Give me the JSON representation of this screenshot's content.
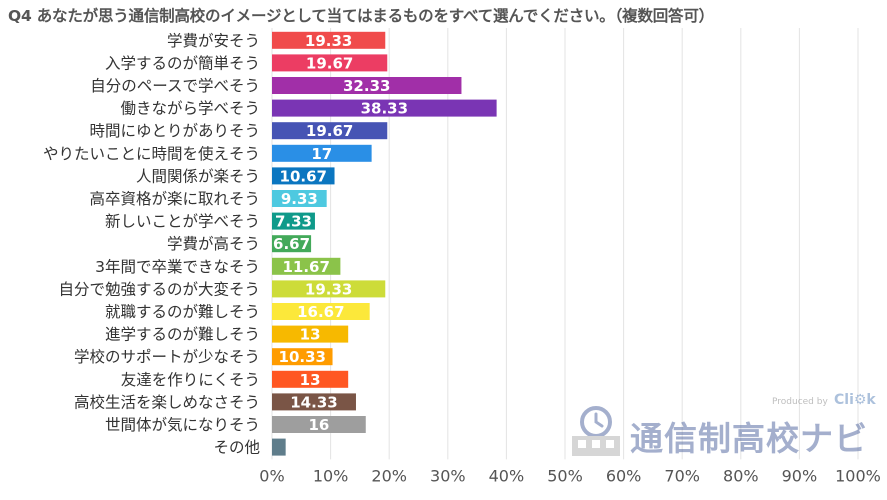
{
  "chart_data": {
    "type": "bar",
    "orientation": "horizontal",
    "title": "Q4 あなたが思う通信制高校のイメージとして当てはまるものをすべて選んでください。（複数回答可）",
    "categories": [
      "学費が安そう",
      "入学するのが簡単そう",
      "自分のペースで学べそう",
      "働きながら学べそう",
      "時間にゆとりがありそう",
      "やりたいことに時間を使えそう",
      "人間関係が楽そう",
      "高卒資格が楽に取れそう",
      "新しいことが学べそう",
      "学費が高そう",
      "3年間で卒業できなそう",
      "自分で勉強するのが大変そう",
      "就職するのが難しそう",
      "進学するのが難しそう",
      "学校のサポートが少なそう",
      "友達を作りにくそう",
      "高校生活を楽しめなさそう",
      "世間体が気になりそう",
      "その他"
    ],
    "values": [
      19.33,
      19.67,
      32.33,
      38.33,
      19.67,
      17,
      10.67,
      9.33,
      7.33,
      6.67,
      11.67,
      19.33,
      16.67,
      13,
      10.33,
      13,
      14.33,
      16,
      2.33
    ],
    "value_labels": [
      "19.33",
      "19.67",
      "32.33",
      "38.33",
      "19.67",
      "17",
      "10.67",
      "9.33",
      "7.33",
      "6.67",
      "11.67",
      "19.33",
      "16.67",
      "13",
      "10.33",
      "13",
      "14.33",
      "16",
      ""
    ],
    "colors": [
      "#f04b4b",
      "#ec3d63",
      "#a12fa8",
      "#7a35b4",
      "#4654b4",
      "#2a8fe6",
      "#0b76c0",
      "#4ec9e0",
      "#0f9a8a",
      "#43a95a",
      "#8bc34a",
      "#cddc39",
      "#fce83a",
      "#f7b900",
      "#ff9c00",
      "#ff5722",
      "#7a5546",
      "#9e9e9e",
      "#5f7d8b"
    ],
    "xlim": [
      0,
      100
    ],
    "xticks": [
      0,
      10,
      20,
      30,
      40,
      50,
      60,
      70,
      80,
      90,
      100
    ],
    "xtick_labels": [
      "0%",
      "10%",
      "20%",
      "30%",
      "40%",
      "50%",
      "60%",
      "70%",
      "80%",
      "90%",
      "100%"
    ],
    "grid": true,
    "legend": "none"
  },
  "watermark": {
    "produced_by": "Produced by",
    "brand": "Cli⚙k",
    "text": "通信制高校ナビ"
  }
}
